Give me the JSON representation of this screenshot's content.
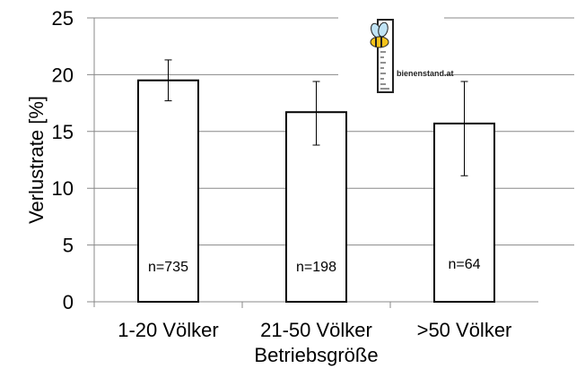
{
  "chart_data": {
    "type": "bar",
    "title": "",
    "xlabel": "Betriebsgröße",
    "ylabel": "Verlustrate [%]",
    "ylim": [
      0,
      25
    ],
    "yticks": [
      "0",
      "5",
      "10",
      "15",
      "20",
      "25"
    ],
    "grid": true,
    "categories": [
      "1-20 Völker",
      "21-50 Völker",
      ">50 Völker"
    ],
    "values": [
      19.5,
      16.7,
      15.7
    ],
    "error_low": [
      17.7,
      13.8,
      11.1
    ],
    "error_high": [
      21.3,
      19.4,
      19.4
    ],
    "bar_labels": [
      "n=735",
      "n=198",
      "n=64"
    ],
    "colors": {
      "bar_fill": "#ffffff",
      "bar_stroke": "#000000",
      "grid": "#888888"
    }
  },
  "logo": {
    "text": "bienenstand.at"
  }
}
